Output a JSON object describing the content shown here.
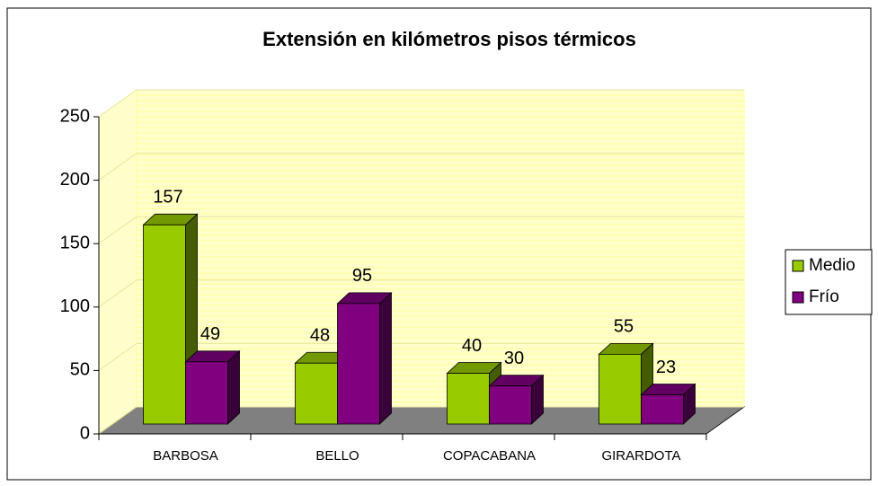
{
  "chart_data": {
    "type": "bar3d",
    "title": "Extensión en kilómetros pisos térmicos",
    "categories": [
      "BARBOSA",
      "BELLO",
      "COPACABANA",
      "GIRARDOTA"
    ],
    "series": [
      {
        "name": "Medio",
        "color": "#99cc00",
        "values": [
          157,
          48,
          40,
          55
        ]
      },
      {
        "name": "Frío",
        "color": "#800080",
        "values": [
          49,
          95,
          30,
          23
        ]
      }
    ],
    "ylim": [
      0,
      250
    ],
    "yticks": [
      0,
      50,
      100,
      150,
      200,
      250
    ],
    "grid": true,
    "legend": "right"
  }
}
